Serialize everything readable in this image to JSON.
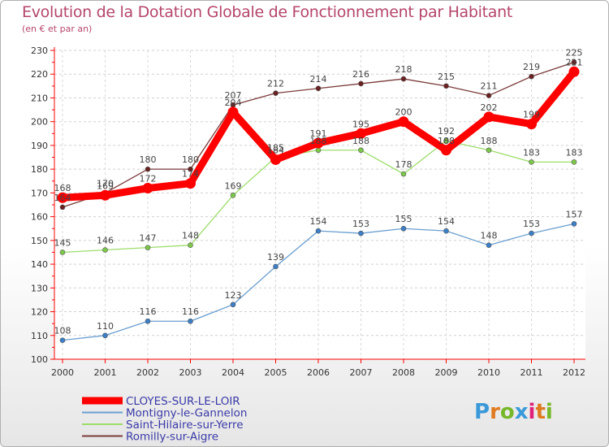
{
  "title": "Evolution de la Dotation Globale de Fonctionnement par Habitant",
  "subtitle": "(en € et par an)",
  "logo_text": "Proxiti",
  "logo_colors": [
    "#3a9ad9",
    "#e07a20",
    "#76b82a",
    "#3a9ad9",
    "#e0207a",
    "#e07a20",
    "#76b82a"
  ],
  "chart_data": {
    "type": "line",
    "title": "Evolution de la Dotation Globale de Fonctionnement par Habitant",
    "subtitle": "(en € et par an)",
    "xlabel": "",
    "ylabel": "",
    "x": [
      "2000",
      "2001",
      "2002",
      "2003",
      "2004",
      "2005",
      "2006",
      "2007",
      "2008",
      "2009",
      "2010",
      "2011",
      "2012"
    ],
    "ylim": [
      100,
      230
    ],
    "yticks": [
      100,
      110,
      120,
      130,
      140,
      150,
      160,
      170,
      180,
      190,
      200,
      210,
      220,
      230
    ],
    "grid": true,
    "legend_position": "bottom-left",
    "series": [
      {
        "name": "CLOYES-SUR-LE-LOIR",
        "color": "#ff0000",
        "marker_color": "#ff0000",
        "width": "thick",
        "values": [
          168,
          169,
          172,
          174,
          204,
          184,
          191,
          195,
          200,
          188,
          202,
          199,
          221
        ],
        "labels": [
          "168",
          "169",
          "172",
          "174",
          "204",
          "184",
          "191",
          "195",
          "200",
          "188",
          "202",
          "199",
          "221"
        ]
      },
      {
        "name": "Montigny-le-Gannelon",
        "color": "#6a9fd0",
        "marker_color": "#3a7fc8",
        "width": "thin",
        "values": [
          108,
          110,
          116,
          116,
          123,
          139,
          154,
          153,
          155,
          154,
          148,
          153,
          157
        ],
        "labels": [
          "108",
          "110",
          "116",
          "116",
          "123",
          "139",
          "154",
          "153",
          "155",
          "154",
          "148",
          "153",
          "157"
        ]
      },
      {
        "name": "Saint-Hilaire-sur-Yerre",
        "color": "#9ddd6a",
        "marker_color": "#7cc84a",
        "width": "thin",
        "values": [
          145,
          146,
          147,
          148,
          169,
          185,
          188,
          188,
          178,
          192,
          188,
          183,
          183
        ],
        "labels": [
          "145",
          "146",
          "147",
          "148",
          "169",
          "185",
          "188",
          "188",
          "178",
          "192",
          "188",
          "183",
          "183"
        ]
      },
      {
        "name": "Romilly-sur-Aigre",
        "color": "#7b3b3b",
        "marker_color": "#6a2020",
        "width": "thin",
        "values": [
          164,
          170,
          180,
          180,
          207,
          212,
          214,
          216,
          218,
          215,
          211,
          219,
          225
        ],
        "labels": [
          "164",
          "170",
          "180",
          "180",
          "207",
          "212",
          "214",
          "216",
          "218",
          "215",
          "211",
          "219",
          "225"
        ]
      }
    ]
  }
}
